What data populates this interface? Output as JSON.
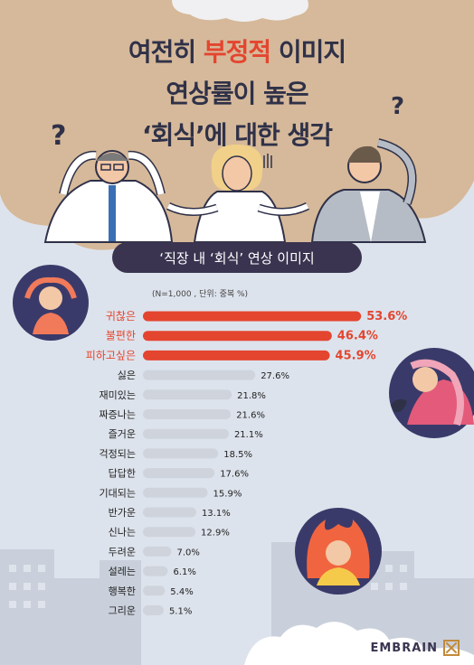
{
  "title": {
    "line1_pre": "여전히 ",
    "line1_accent": "부정적",
    "line1_post": " 이미지",
    "line2": "연상률이 높은",
    "line3": "‘회식’에 대한 생각"
  },
  "subtitle": "‘직장 내 ‘회식’ 연상 이미지",
  "note": "(N=1,000 , 단위: 중복 %)",
  "logo": "EMBRAIN",
  "colors": {
    "highlight": "#e4452f",
    "bar": "#cfd4dc",
    "top_label": "#e4452f",
    "label": "#222222",
    "title": "#2f3148",
    "pill": "#3a3450",
    "sky": "#dde3ec",
    "cloud": "#d6b99a"
  },
  "chart_data": {
    "type": "bar",
    "orientation": "horizontal",
    "categories": [
      "귀찮은",
      "불편한",
      "피하고싶은",
      "싫은",
      "재미있는",
      "짜증나는",
      "즐거운",
      "걱정되는",
      "답답한",
      "기대되는",
      "반가운",
      "신나는",
      "두려운",
      "설레는",
      "행복한",
      "그리운"
    ],
    "values": [
      53.6,
      46.4,
      45.9,
      27.6,
      21.8,
      21.6,
      21.1,
      18.5,
      17.6,
      15.9,
      13.1,
      12.9,
      7.0,
      6.1,
      5.4,
      5.1
    ],
    "value_labels": [
      "53.6%",
      "46.4%",
      "45.9%",
      "27.6%",
      "21.8%",
      "21.6%",
      "21.1%",
      "18.5%",
      "17.6%",
      "15.9%",
      "13.1%",
      "12.9%",
      "7.0%",
      "6.1%",
      "5.4%",
      "5.1%"
    ],
    "highlighted_count": 3,
    "xlim": [
      0,
      60
    ],
    "grid": false,
    "legend": "none"
  }
}
